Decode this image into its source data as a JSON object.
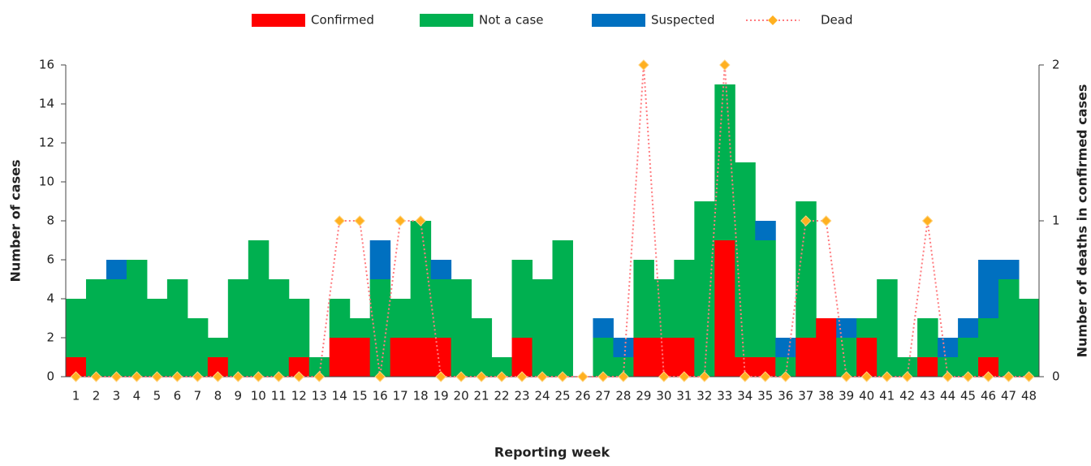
{
  "chart_data": {
    "type": "stacked_bar_line",
    "x_label": "Reporting week",
    "y_label": "Number of cases",
    "y2_label": "Number of deaths in confirmed cases",
    "categories": [
      "1",
      "2",
      "3",
      "4",
      "5",
      "6",
      "7",
      "8",
      "9",
      "10",
      "11",
      "12",
      "13",
      "14",
      "15",
      "16",
      "17",
      "18",
      "19",
      "20",
      "21",
      "22",
      "23",
      "24",
      "25",
      "26",
      "27",
      "28",
      "29",
      "30",
      "31",
      "32",
      "33",
      "34",
      "35",
      "36",
      "37",
      "38",
      "39",
      "40",
      "41",
      "42",
      "43",
      "44",
      "45",
      "46",
      "47",
      "48"
    ],
    "series": [
      {
        "name": "Confirmed",
        "color": "#ff0000",
        "values": [
          1,
          0,
          0,
          0,
          0,
          0,
          0,
          1,
          0,
          0,
          0,
          1,
          0,
          2,
          2,
          0,
          2,
          2,
          2,
          0,
          0,
          0,
          2,
          0,
          0,
          0,
          0,
          0,
          2,
          2,
          2,
          0,
          7,
          1,
          1,
          0,
          2,
          3,
          0,
          2,
          0,
          0,
          1,
          0,
          0,
          1,
          0,
          0
        ]
      },
      {
        "name": "Not a case",
        "color": "#00b050",
        "values": [
          3,
          5,
          5,
          6,
          4,
          5,
          3,
          1,
          5,
          7,
          5,
          3,
          1,
          2,
          1,
          5,
          2,
          6,
          3,
          5,
          3,
          1,
          4,
          5,
          7,
          0,
          2,
          1,
          4,
          3,
          4,
          9,
          8,
          10,
          6,
          1,
          7,
          0,
          2,
          1,
          5,
          1,
          2,
          1,
          2,
          2,
          5,
          4
        ]
      },
      {
        "name": "Suspected",
        "color": "#0070c0",
        "values": [
          0,
          0,
          1,
          0,
          0,
          0,
          0,
          0,
          0,
          0,
          0,
          0,
          0,
          0,
          0,
          2,
          0,
          0,
          1,
          0,
          0,
          0,
          0,
          0,
          0,
          0,
          1,
          1,
          0,
          0,
          0,
          0,
          0,
          0,
          1,
          1,
          0,
          0,
          1,
          0,
          0,
          0,
          0,
          1,
          1,
          3,
          1,
          0
        ]
      },
      {
        "name": "Dead",
        "color": "#ff7c80",
        "marker_color": "#ffb020",
        "axis": "y2",
        "values": [
          0,
          0,
          0,
          0,
          0,
          0,
          0,
          0,
          0,
          0,
          0,
          0,
          0,
          1,
          1,
          0,
          1,
          1,
          0,
          0,
          0,
          0,
          0,
          0,
          0,
          0,
          0,
          0,
          2,
          0,
          0,
          0,
          2,
          0,
          0,
          0,
          1,
          1,
          0,
          0,
          0,
          0,
          1,
          0,
          0,
          0,
          0,
          0
        ]
      }
    ],
    "ylim": [
      0,
      16
    ],
    "yticks": [
      0,
      2,
      4,
      6,
      8,
      10,
      12,
      14,
      16
    ],
    "y2lim": [
      0,
      2
    ],
    "y2ticks": [
      0,
      1,
      2
    ],
    "legend": "top"
  }
}
